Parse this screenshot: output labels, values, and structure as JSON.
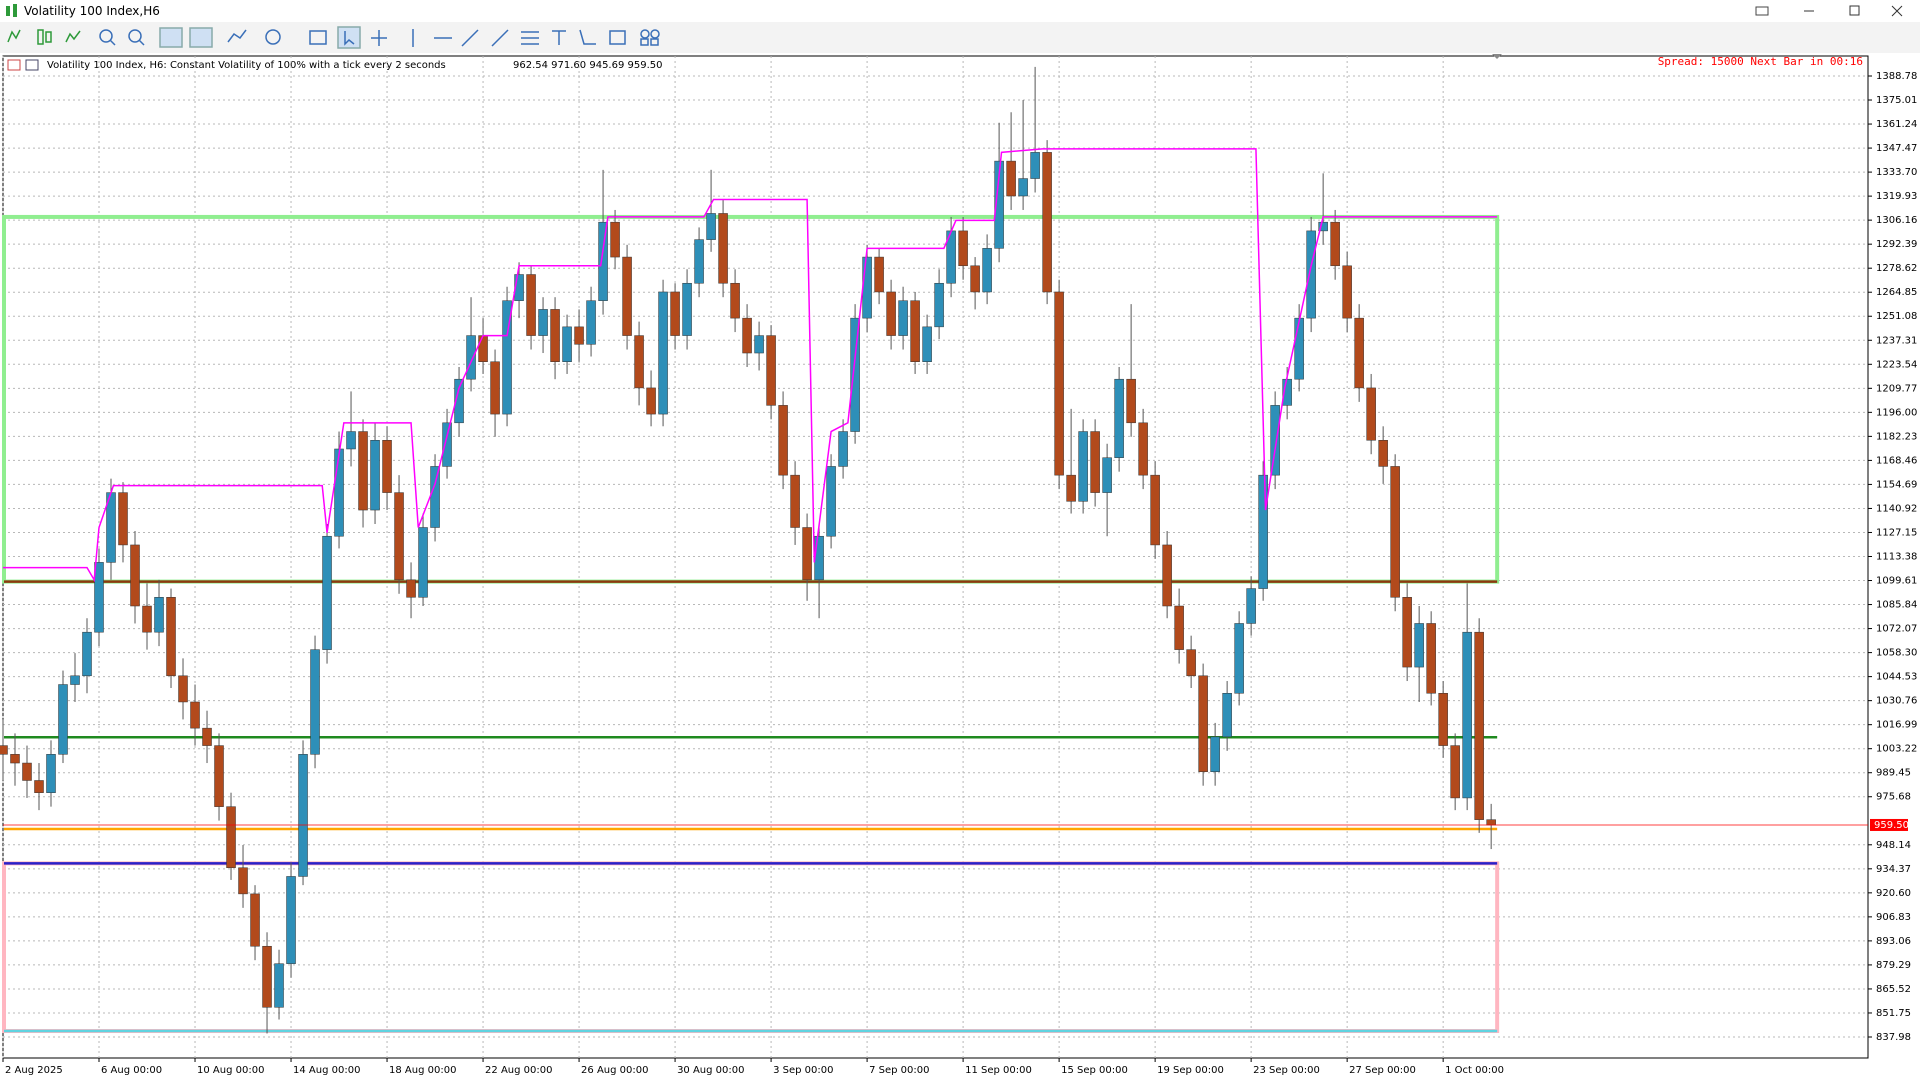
{
  "window": {
    "title": "Volatility 100 Index,H6"
  },
  "chart_data": {
    "type": "candlestick",
    "title": "Volatility 100 Index, H6:  Constant Volatility of 100% with a tick every 2 seconds",
    "ohlc_label": "962.54 971.60 945.69 959.50",
    "status": "Spread: 15000 Next Bar in 00:16",
    "up_color": "#2e8fb8",
    "down_color": "#b24a1c",
    "grid": true,
    "xlim": [
      0,
      77.7
    ],
    "ylim": [
      825.94,
      1400.24
    ],
    "xticks": [
      {
        "value": 0,
        "label": "2 Aug 2025"
      },
      {
        "value": 4,
        "label": "6 Aug 00:00"
      },
      {
        "value": 8,
        "label": "10 Aug 00:00"
      },
      {
        "value": 12,
        "label": "14 Aug 00:00"
      },
      {
        "value": 16,
        "label": "18 Aug 00:00"
      },
      {
        "value": 20,
        "label": "22 Aug 00:00"
      },
      {
        "value": 24,
        "label": "26 Aug 00:00"
      },
      {
        "value": 28,
        "label": "30 Aug 00:00"
      },
      {
        "value": 32,
        "label": "3 Sep 00:00"
      },
      {
        "value": 36,
        "label": "7 Sep 00:00"
      },
      {
        "value": 40,
        "label": "11 Sep 00:00"
      },
      {
        "value": 44,
        "label": "15 Sep 00:00"
      },
      {
        "value": 48,
        "label": "19 Sep 00:00"
      },
      {
        "value": 52,
        "label": "23 Sep 00:00"
      },
      {
        "value": 56,
        "label": "27 Sep 00:00"
      },
      {
        "value": 60,
        "label": "1 Oct 00:00"
      }
    ],
    "yticks": [
      837.98,
      851.75,
      865.52,
      879.29,
      893.06,
      906.83,
      {
        "value": 920.6,
        "label": "920.60"
      },
      934.37,
      948.14,
      975.68,
      989.45,
      1003.22,
      1016.99,
      1030.76,
      1044.53,
      {
        "value": 1058.3,
        "label": "1058.30"
      },
      1072.07,
      1085.84,
      1099.61,
      1113.38,
      1127.15,
      1140.92,
      1154.69,
      1168.46,
      1182.23,
      {
        "value": 1196,
        "label": "1196.00"
      },
      1209.77,
      1223.54,
      1237.31,
      1251.08,
      1264.85,
      1278.62,
      1292.39,
      1306.16,
      1319.93,
      {
        "value": 1333.7,
        "label": "1333.70"
      },
      1347.47,
      1361.24,
      1375.01,
      1388.78
    ],
    "last_price": {
      "value": 959.5,
      "label": "959.50",
      "color": "#ff0000"
    },
    "zones": [
      {
        "top": 1308,
        "bottom": 1099,
        "color": "#90ee90"
      },
      {
        "top": 937.5,
        "bottom": 841.4,
        "color": "#ffb6c1"
      }
    ],
    "levels": [
      {
        "value": 1099,
        "color": "#8b3a0f"
      },
      {
        "value": 1009.8,
        "color": "#1f8a1f"
      },
      {
        "value": 957.2,
        "color": "#ffa500"
      },
      {
        "value": 937.5,
        "color": "#2a1fc8"
      },
      {
        "value": 841.4,
        "color": "#5fd3e0"
      }
    ],
    "step_line": {
      "color": "#ff00ff",
      "x": [
        0,
        3.5,
        3.8,
        4,
        4.6,
        13.3,
        13.5,
        14.2,
        17,
        17.3,
        18,
        19,
        20,
        21,
        21.5,
        24.9,
        25.2,
        29.2,
        29.6,
        33.5,
        33.8,
        34.5,
        35.2,
        36,
        39.2,
        39.7,
        41.3,
        41.6,
        43.3,
        52.2,
        52.6,
        53.4,
        54.5,
        55,
        62.25
      ],
      "values": [
        1107,
        1107,
        1100,
        1130,
        1154,
        1154,
        1127,
        1190,
        1190,
        1130,
        1155,
        1210,
        1240,
        1240,
        1280,
        1280,
        1308,
        1308,
        1318,
        1318,
        1110,
        1185,
        1190,
        1290,
        1290,
        1306,
        1306,
        1345,
        1347,
        1347,
        1140,
        1210,
        1280,
        1308,
        1308
      ]
    },
    "x": [
      0,
      0.5,
      1,
      1.5,
      2,
      2.5,
      3,
      3.5,
      4,
      4.5,
      5,
      5.5,
      6,
      6.5,
      7,
      7.5,
      8,
      8.5,
      9,
      9.5,
      10,
      10.5,
      11,
      11.5,
      12,
      12.5,
      13,
      13.5,
      14,
      14.5,
      15,
      15.5,
      16,
      16.5,
      17,
      17.5,
      18,
      18.5,
      19,
      19.5,
      20,
      20.5,
      21,
      21.5,
      22,
      22.5,
      23,
      23.5,
      24,
      24.5,
      25,
      25.5,
      26,
      26.5,
      27,
      27.5,
      28,
      28.5,
      29,
      29.5,
      30,
      30.5,
      31,
      31.5,
      32,
      32.5,
      33,
      33.5,
      34,
      34.5,
      35,
      35.5,
      36,
      36.5,
      37,
      37.5,
      38,
      38.5,
      39,
      39.5,
      40,
      40.5,
      41,
      41.5,
      42,
      42.5,
      43,
      43.5,
      44,
      44.5,
      45,
      45.5,
      46,
      46.5,
      47,
      47.5,
      48,
      48.5,
      49,
      49.5,
      50,
      50.5,
      51,
      51.5,
      52,
      52.5,
      53,
      53.5,
      54,
      54.5,
      55,
      55.5,
      56,
      56.5,
      57,
      57.5,
      58,
      58.5,
      59,
      59.5,
      60,
      60.5,
      61,
      61.5,
      62
    ],
    "ohlc": [
      [
        1005,
        1020,
        985,
        1000
      ],
      [
        1000,
        1012,
        982,
        995
      ],
      [
        995,
        1005,
        975,
        985
      ],
      [
        985,
        995,
        968,
        978
      ],
      [
        978,
        1008,
        970,
        1000
      ],
      [
        1000,
        1048,
        995,
        1040
      ],
      [
        1040,
        1058,
        1030,
        1045
      ],
      [
        1045,
        1078,
        1035,
        1070
      ],
      [
        1070,
        1118,
        1062,
        1110
      ],
      [
        1110,
        1158,
        1100,
        1150
      ],
      [
        1150,
        1156,
        1110,
        1120
      ],
      [
        1120,
        1128,
        1075,
        1085
      ],
      [
        1085,
        1098,
        1060,
        1070
      ],
      [
        1070,
        1100,
        1062,
        1090
      ],
      [
        1090,
        1095,
        1038,
        1045
      ],
      [
        1045,
        1055,
        1020,
        1030
      ],
      [
        1030,
        1040,
        1005,
        1015
      ],
      [
        1015,
        1025,
        995,
        1005
      ],
      [
        1005,
        1012,
        962,
        970
      ],
      [
        970,
        978,
        928,
        935
      ],
      [
        935,
        948,
        912,
        920
      ],
      [
        920,
        925,
        882,
        890
      ],
      [
        890,
        898,
        840,
        855
      ],
      [
        855,
        888,
        848,
        880
      ],
      [
        880,
        938,
        872,
        930
      ],
      [
        930,
        1008,
        925,
        1000
      ],
      [
        1000,
        1068,
        992,
        1060
      ],
      [
        1060,
        1132,
        1052,
        1125
      ],
      [
        1125,
        1185,
        1118,
        1175
      ],
      [
        1175,
        1208,
        1165,
        1185
      ],
      [
        1185,
        1192,
        1130,
        1140
      ],
      [
        1140,
        1190,
        1132,
        1180
      ],
      [
        1180,
        1188,
        1140,
        1150
      ],
      [
        1150,
        1160,
        1092,
        1100
      ],
      [
        1100,
        1110,
        1078,
        1090
      ],
      [
        1090,
        1138,
        1085,
        1130
      ],
      [
        1130,
        1172,
        1122,
        1165
      ],
      [
        1165,
        1198,
        1158,
        1190
      ],
      [
        1190,
        1222,
        1182,
        1215
      ],
      [
        1215,
        1262,
        1208,
        1240
      ],
      [
        1240,
        1250,
        1218,
        1225
      ],
      [
        1225,
        1232,
        1182,
        1195
      ],
      [
        1195,
        1268,
        1188,
        1260
      ],
      [
        1260,
        1282,
        1250,
        1275
      ],
      [
        1275,
        1280,
        1232,
        1240
      ],
      [
        1240,
        1262,
        1230,
        1255
      ],
      [
        1255,
        1262,
        1215,
        1225
      ],
      [
        1225,
        1252,
        1218,
        1245
      ],
      [
        1245,
        1255,
        1225,
        1235
      ],
      [
        1235,
        1268,
        1228,
        1260
      ],
      [
        1260,
        1335,
        1252,
        1305
      ],
      [
        1305,
        1312,
        1278,
        1285
      ],
      [
        1285,
        1292,
        1232,
        1240
      ],
      [
        1240,
        1248,
        1200,
        1210
      ],
      [
        1210,
        1220,
        1188,
        1195
      ],
      [
        1195,
        1272,
        1188,
        1265
      ],
      [
        1265,
        1270,
        1232,
        1240
      ],
      [
        1240,
        1278,
        1232,
        1270
      ],
      [
        1270,
        1302,
        1262,
        1295
      ],
      [
        1295,
        1335,
        1288,
        1310
      ],
      [
        1310,
        1318,
        1262,
        1270
      ],
      [
        1270,
        1278,
        1242,
        1250
      ],
      [
        1250,
        1258,
        1222,
        1230
      ],
      [
        1230,
        1248,
        1220,
        1240
      ],
      [
        1240,
        1246,
        1192,
        1200
      ],
      [
        1200,
        1208,
        1152,
        1160
      ],
      [
        1160,
        1168,
        1120,
        1130
      ],
      [
        1130,
        1138,
        1088,
        1100
      ],
      [
        1100,
        1132,
        1078,
        1125
      ],
      [
        1125,
        1172,
        1118,
        1165
      ],
      [
        1165,
        1192,
        1158,
        1185
      ],
      [
        1185,
        1258,
        1178,
        1250
      ],
      [
        1250,
        1292,
        1242,
        1285
      ],
      [
        1285,
        1290,
        1258,
        1265
      ],
      [
        1265,
        1272,
        1232,
        1240
      ],
      [
        1240,
        1268,
        1232,
        1260
      ],
      [
        1260,
        1265,
        1218,
        1225
      ],
      [
        1225,
        1252,
        1218,
        1245
      ],
      [
        1245,
        1278,
        1238,
        1270
      ],
      [
        1270,
        1308,
        1262,
        1300
      ],
      [
        1300,
        1308,
        1272,
        1280
      ],
      [
        1280,
        1285,
        1255,
        1265
      ],
      [
        1265,
        1298,
        1258,
        1290
      ],
      [
        1290,
        1362,
        1282,
        1340
      ],
      [
        1340,
        1368,
        1312,
        1320
      ],
      [
        1320,
        1375,
        1312,
        1330
      ],
      [
        1330,
        1394,
        1322,
        1345
      ],
      [
        1345,
        1352,
        1258,
        1265
      ],
      [
        1265,
        1272,
        1152,
        1160
      ],
      [
        1160,
        1198,
        1138,
        1145
      ],
      [
        1145,
        1192,
        1138,
        1185
      ],
      [
        1185,
        1192,
        1142,
        1150
      ],
      [
        1150,
        1178,
        1125,
        1170
      ],
      [
        1170,
        1222,
        1162,
        1215
      ],
      [
        1215,
        1258,
        1182,
        1190
      ],
      [
        1190,
        1198,
        1152,
        1160
      ],
      [
        1160,
        1168,
        1112,
        1120
      ],
      [
        1120,
        1128,
        1078,
        1085
      ],
      [
        1085,
        1095,
        1052,
        1060
      ],
      [
        1060,
        1068,
        1038,
        1045
      ],
      [
        1045,
        1052,
        982,
        990
      ],
      [
        990,
        1018,
        982,
        1010
      ],
      [
        1010,
        1042,
        1002,
        1035
      ],
      [
        1035,
        1082,
        1028,
        1075
      ],
      [
        1075,
        1102,
        1068,
        1095
      ],
      [
        1095,
        1168,
        1088,
        1160
      ],
      [
        1160,
        1208,
        1152,
        1200
      ],
      [
        1200,
        1222,
        1192,
        1215
      ],
      [
        1215,
        1258,
        1208,
        1250
      ],
      [
        1250,
        1308,
        1242,
        1300
      ],
      [
        1300,
        1333,
        1292,
        1305
      ],
      [
        1305,
        1312,
        1272,
        1280
      ],
      [
        1280,
        1288,
        1242,
        1250
      ],
      [
        1250,
        1258,
        1202,
        1210
      ],
      [
        1210,
        1218,
        1172,
        1180
      ],
      [
        1180,
        1188,
        1155,
        1165
      ],
      [
        1165,
        1172,
        1082,
        1090
      ],
      [
        1090,
        1098,
        1042,
        1050
      ],
      [
        1050,
        1085,
        1030,
        1075
      ],
      [
        1075,
        1082,
        1028,
        1035
      ],
      [
        1035,
        1042,
        998,
        1005
      ],
      [
        1005,
        1012,
        968,
        975
      ],
      [
        975,
        1098,
        968,
        1070
      ],
      [
        1070,
        1078,
        955,
        962.54
      ],
      [
        962.54,
        971.6,
        945.69,
        959.5
      ]
    ]
  }
}
